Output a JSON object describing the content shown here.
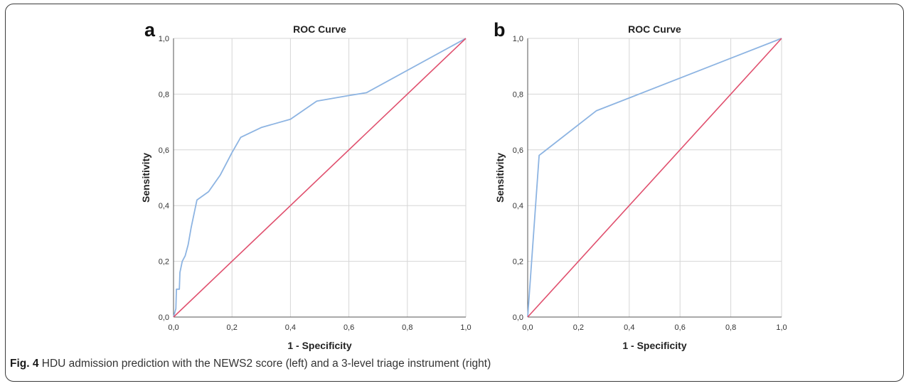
{
  "caption": {
    "label": "Fig. 4",
    "text": " HDU admission prediction with the NEWS2 score (left) and a 3-level triage instrument (right)"
  },
  "colors": {
    "roc_curve": "#8db4e2",
    "reference_line": "#e0506e",
    "grid": "#d6d6d6"
  },
  "chart_data": [
    {
      "panel": "a",
      "type": "line",
      "title": "ROC Curve",
      "xlabel": "1 - Specificity",
      "ylabel": "Sensitivity",
      "xlim": [
        0,
        1
      ],
      "ylim": [
        0,
        1
      ],
      "xticks": [
        "0,0",
        "0,2",
        "0,4",
        "0,6",
        "0,8",
        "1,0"
      ],
      "yticks": [
        "0,0",
        "0,2",
        "0,4",
        "0,6",
        "0,8",
        "1,0"
      ],
      "grid": true,
      "series": [
        {
          "role": "roc",
          "x": [
            0,
            0.008,
            0.01,
            0.02,
            0.022,
            0.03,
            0.04,
            0.05,
            0.06,
            0.08,
            0.12,
            0.16,
            0.2,
            0.23,
            0.3,
            0.4,
            0.49,
            0.6,
            0.66,
            1.0
          ],
          "y": [
            0,
            0.03,
            0.1,
            0.1,
            0.16,
            0.2,
            0.22,
            0.26,
            0.32,
            0.42,
            0.45,
            0.51,
            0.59,
            0.645,
            0.68,
            0.71,
            0.775,
            0.795,
            0.805,
            1.0
          ]
        },
        {
          "role": "reference",
          "x": [
            0,
            1
          ],
          "y": [
            0,
            1
          ]
        }
      ]
    },
    {
      "panel": "b",
      "type": "line",
      "title": "ROC Curve",
      "xlabel": "1 - Specificity",
      "ylabel": "Sensitivity",
      "xlim": [
        0,
        1
      ],
      "ylim": [
        0,
        1
      ],
      "xticks": [
        "0,0",
        "0,2",
        "0,4",
        "0,6",
        "0,8",
        "1,0"
      ],
      "yticks": [
        "0,0",
        "0,2",
        "0,4",
        "0,6",
        "0,8",
        "1,0"
      ],
      "grid": true,
      "series": [
        {
          "role": "roc",
          "x": [
            0,
            0.045,
            0.27,
            1.0
          ],
          "y": [
            0,
            0.58,
            0.74,
            1.0
          ]
        },
        {
          "role": "reference",
          "x": [
            0,
            1
          ],
          "y": [
            0,
            1
          ]
        }
      ]
    }
  ]
}
